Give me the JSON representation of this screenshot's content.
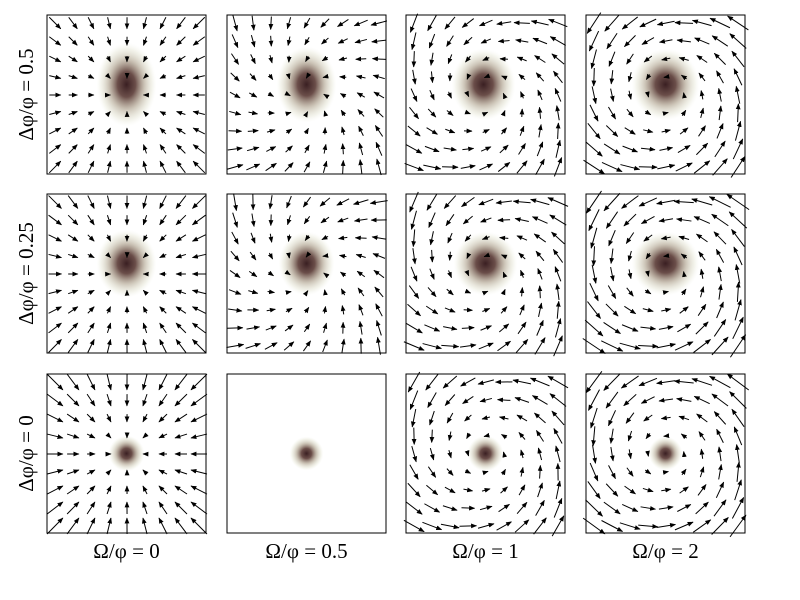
{
  "row_labels": [
    "Δφ/φ = 0.5",
    "Δφ/φ = 0.25",
    "Δφ/φ = 0"
  ],
  "column_labels": [
    "Ω/φ = 0",
    "Ω/φ = 0.5",
    "Ω/φ = 1",
    "Ω/φ = 2"
  ]
}
